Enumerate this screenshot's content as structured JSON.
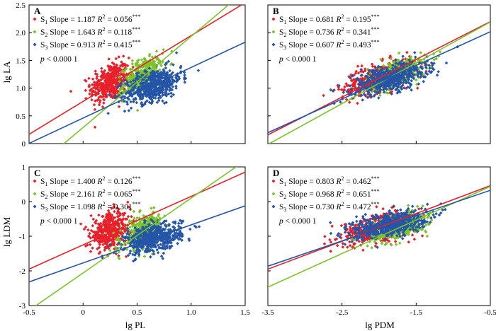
{
  "figure": {
    "colors": {
      "S1": "#e8202a",
      "S2": "#7cc42a",
      "S3": "#2455a8"
    },
    "xlabels": {
      "left": "lg PL",
      "right": "lg PDM"
    },
    "ylabels": {
      "top": "lg LA",
      "bottom": "lg LDM"
    }
  },
  "chart_data": [
    {
      "panel": "A",
      "type": "scatter",
      "xlim": [
        -0.5,
        1.5
      ],
      "ylim": [
        0,
        2.5
      ],
      "xticks": [
        "-0.5",
        "0",
        "0.5",
        "1.0",
        "1.5"
      ],
      "yticks": [
        "0",
        "0.5",
        "1.0",
        "1.5",
        "2.0",
        "2.5"
      ],
      "xticks_shown": false,
      "ylabel": "lg LA",
      "xlabel": "",
      "series": [
        {
          "name": "S1",
          "slope_text": "Slope = 1.187",
          "r2_text": "= 0.056",
          "sig": "***",
          "slope": 1.187,
          "intercept": 0.76,
          "center": [
            0.25,
            1.1
          ],
          "spread": [
            0.09,
            0.17
          ],
          "n": 420
        },
        {
          "name": "S2",
          "slope_text": "Slope = 1.643",
          "r2_text": "= 0.118",
          "sig": "***",
          "slope": 1.643,
          "intercept": 0.29,
          "center": [
            0.55,
            1.22
          ],
          "spread": [
            0.09,
            0.15
          ],
          "n": 360
        },
        {
          "name": "S3",
          "slope_text": "Slope = 0.913",
          "r2_text": "= 0.415",
          "sig": "***",
          "slope": 0.913,
          "intercept": 0.46,
          "center": [
            0.65,
            1.05
          ],
          "spread": [
            0.13,
            0.14
          ],
          "n": 560
        }
      ],
      "p_text": "< 0.000 1"
    },
    {
      "panel": "B",
      "type": "scatter",
      "xlim": [
        -3.5,
        -0.5
      ],
      "ylim": [
        0,
        2.5
      ],
      "xticks": [
        "-3.5",
        "-2.5",
        "-1.5",
        "-0.5"
      ],
      "yticks": [
        "0",
        "0.5",
        "1.0",
        "1.5",
        "2.0",
        "2.5"
      ],
      "xticks_shown": false,
      "yticks_shown": false,
      "series": [
        {
          "name": "S1",
          "slope_text": "Slope = 0.681",
          "r2_text": "= 0.195",
          "sig": "***",
          "slope": 0.681,
          "intercept": 2.54,
          "center": [
            -2.0,
            1.18
          ],
          "spread": [
            0.25,
            0.13
          ],
          "n": 420
        },
        {
          "name": "S2",
          "slope_text": "Slope = 0.736",
          "r2_text": "= 0.341",
          "sig": "***",
          "slope": 0.736,
          "intercept": 2.56,
          "center": [
            -1.75,
            1.28
          ],
          "spread": [
            0.2,
            0.12
          ],
          "n": 360
        },
        {
          "name": "S3",
          "slope_text": "Slope = 0.607",
          "r2_text": "= 0.493",
          "sig": "***",
          "slope": 0.607,
          "intercept": 2.32,
          "center": [
            -1.85,
            1.18
          ],
          "spread": [
            0.25,
            0.12
          ],
          "n": 560
        }
      ],
      "p_text": "< 0.000 1"
    },
    {
      "panel": "C",
      "type": "scatter",
      "xlim": [
        -0.5,
        1.5
      ],
      "ylim": [
        -3,
        1
      ],
      "xticks": [
        "-0.5",
        "0",
        "0.5",
        "1.0",
        "1.5"
      ],
      "yticks": [
        "-3",
        "-2",
        "-1",
        "0",
        "1"
      ],
      "ylabel": "lg LDM",
      "xlabel": "lg PL",
      "series": [
        {
          "name": "S1",
          "slope_text": "Slope = 1.400",
          "r2_text": "= 0.126",
          "sig": "***",
          "slope": 1.4,
          "intercept": -1.25,
          "center": [
            0.25,
            -0.85
          ],
          "spread": [
            0.09,
            0.25
          ],
          "n": 420
        },
        {
          "name": "S2",
          "slope_text": "Slope = 2.161",
          "r2_text": "= 0.065",
          "sig": "***",
          "slope": 2.161,
          "intercept": -2.06,
          "center": [
            0.55,
            -0.85
          ],
          "spread": [
            0.09,
            0.22
          ],
          "n": 360
        },
        {
          "name": "S3",
          "slope_text": "Slope = 1.098",
          "r2_text": "= 0.301",
          "sig": "***",
          "slope": 1.098,
          "intercept": -1.77,
          "center": [
            0.65,
            -1.05
          ],
          "spread": [
            0.13,
            0.2
          ],
          "n": 560
        }
      ],
      "p_text": "< 0.000 1"
    },
    {
      "panel": "D",
      "type": "scatter",
      "xlim": [
        -3.5,
        -0.5
      ],
      "ylim": [
        -3,
        1
      ],
      "xticks": [
        "-3.5",
        "-2.5",
        "-1.5",
        "-0.5"
      ],
      "yticks": [
        "-3",
        "-2",
        "-1",
        "0",
        "1"
      ],
      "yticks_shown": false,
      "xlabel": "lg PDM",
      "series": [
        {
          "name": "S1",
          "slope_text": "Slope = 0.803",
          "r2_text": "= 0.462",
          "sig": "***",
          "slope": 0.803,
          "intercept": 0.86,
          "center": [
            -2.0,
            -0.75
          ],
          "spread": [
            0.25,
            0.2
          ],
          "n": 420
        },
        {
          "name": "S2",
          "slope_text": "Slope = 0.968",
          "r2_text": "= 0.651",
          "sig": "***",
          "slope": 0.968,
          "intercept": 0.92,
          "center": [
            -1.75,
            -0.75
          ],
          "spread": [
            0.2,
            0.17
          ],
          "n": 360
        },
        {
          "name": "S3",
          "slope_text": "Slope = 0.730",
          "r2_text": "= 0.472",
          "sig": "***",
          "slope": 0.73,
          "intercept": 0.69,
          "center": [
            -1.85,
            -0.65
          ],
          "spread": [
            0.25,
            0.17
          ],
          "n": 560
        }
      ],
      "p_text": "< 0.000 1"
    }
  ]
}
